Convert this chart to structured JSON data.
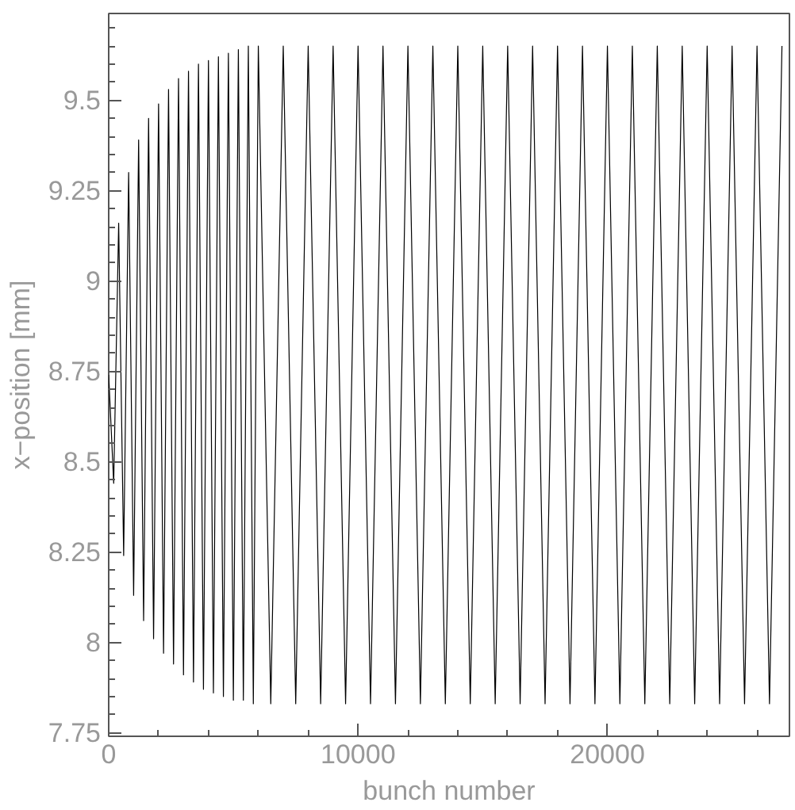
{
  "chart_data": {
    "type": "line",
    "xlabel": "bunch number",
    "ylabel": "x−position [mm]",
    "xlim": [
      0,
      27300
    ],
    "ylim": [
      7.74,
      9.74
    ],
    "xticks": [
      0,
      10000,
      20000
    ],
    "yticks": [
      7.75,
      8,
      8.25,
      8.5,
      8.75,
      9,
      9.25,
      9.5
    ],
    "grid": false,
    "marker": "none",
    "line_style": "solid",
    "series": [
      {
        "color": "#000000",
        "x": [
          0,
          200,
          400,
          600,
          800,
          1000,
          1200,
          1400,
          1600,
          1800,
          2000,
          2200,
          2400,
          2600,
          2800,
          3000,
          3200,
          3400,
          3600,
          3800,
          4000,
          4200,
          4400,
          4600,
          4800,
          5000,
          5200,
          5400,
          5600,
          5800,
          6000,
          6500,
          7000,
          7500,
          8000,
          8500,
          9000,
          9500,
          10000,
          10500,
          11000,
          11500,
          12000,
          12500,
          13000,
          13500,
          14000,
          14500,
          15000,
          15500,
          16000,
          16500,
          17000,
          17500,
          18000,
          18500,
          19000,
          19500,
          20000,
          20500,
          21000,
          21500,
          22000,
          22500,
          23000,
          23500,
          24000,
          24500,
          25000,
          25500,
          26000,
          26500,
          27000
        ],
        "values": [
          8.74,
          8.44,
          9.16,
          8.24,
          9.3,
          8.13,
          9.39,
          8.06,
          9.45,
          8.01,
          9.49,
          7.97,
          9.53,
          7.94,
          9.56,
          7.91,
          9.58,
          7.89,
          9.6,
          7.87,
          9.61,
          7.86,
          9.62,
          7.85,
          9.63,
          7.84,
          9.64,
          7.84,
          9.65,
          7.83,
          9.65,
          7.83,
          9.65,
          7.83,
          9.65,
          7.83,
          9.65,
          7.83,
          9.65,
          7.83,
          9.65,
          7.83,
          9.65,
          7.83,
          9.65,
          7.83,
          9.65,
          7.83,
          9.65,
          7.83,
          9.65,
          7.83,
          9.65,
          7.83,
          9.65,
          7.83,
          9.65,
          7.83,
          9.65,
          7.83,
          9.65,
          7.83,
          9.65,
          7.83,
          9.65,
          7.83,
          9.65,
          7.83,
          9.65,
          7.83,
          9.65,
          7.83,
          9.65
        ]
      }
    ]
  }
}
